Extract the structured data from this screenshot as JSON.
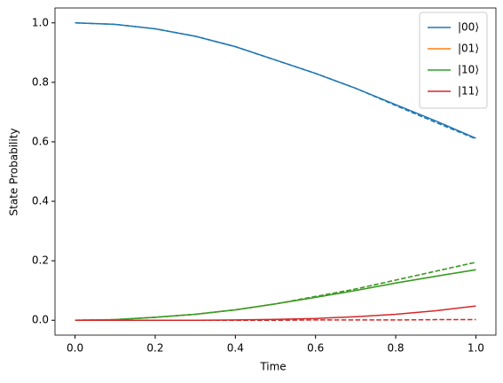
{
  "chart_data": {
    "type": "line",
    "x_label": "Time",
    "y_label": "State Probability",
    "x": [
      0,
      0.1,
      0.2,
      0.3,
      0.4,
      0.5,
      0.6,
      0.7,
      0.8,
      0.9,
      1.0
    ],
    "series": [
      {
        "name": "|00⟩",
        "color": "#1f77b4",
        "linestyle": "solid",
        "values": [
          1.0,
          0.995,
          0.98,
          0.955,
          0.92,
          0.875,
          0.83,
          0.78,
          0.725,
          0.67,
          0.612
        ]
      },
      {
        "name": "|01⟩",
        "color": "#ff7f0e",
        "linestyle": "solid",
        "values": [
          0,
          0.002,
          0.01,
          0.02,
          0.035,
          0.055,
          0.077,
          0.1,
          0.125,
          0.148,
          0.17
        ]
      },
      {
        "name": "|10⟩",
        "color": "#2ca02c",
        "linestyle": "solid",
        "values": [
          0,
          0.002,
          0.01,
          0.02,
          0.035,
          0.055,
          0.077,
          0.1,
          0.125,
          0.148,
          0.17
        ]
      },
      {
        "name": "|11⟩",
        "color": "#d62728",
        "linestyle": "solid",
        "values": [
          0,
          0,
          0,
          0,
          0.001,
          0.003,
          0.006,
          0.012,
          0.02,
          0.032,
          0.048
        ]
      },
      {
        "color": "#1f77b4",
        "linestyle": "dashed",
        "values": [
          1.0,
          0.995,
          0.98,
          0.955,
          0.92,
          0.875,
          0.83,
          0.78,
          0.722,
          0.665,
          0.61
        ]
      },
      {
        "color": "#ff7f0e",
        "linestyle": "dashed",
        "values": [
          0,
          0.002,
          0.01,
          0.02,
          0.035,
          0.055,
          0.08,
          0.105,
          0.135,
          0.165,
          0.195
        ]
      },
      {
        "color": "#2ca02c",
        "linestyle": "dashed",
        "values": [
          0,
          0.002,
          0.01,
          0.02,
          0.035,
          0.055,
          0.08,
          0.105,
          0.135,
          0.165,
          0.195
        ]
      },
      {
        "color": "#d62728",
        "linestyle": "dashed",
        "values": [
          0,
          0,
          0,
          0,
          0,
          0,
          0.001,
          0.001,
          0.001,
          0.002,
          0.002
        ]
      }
    ],
    "xlim": [
      -0.05,
      1.05
    ],
    "ylim": [
      -0.05,
      1.05
    ],
    "xticks": [
      {
        "value": 0,
        "label": "0.0"
      },
      0.2,
      0.4,
      0.6,
      0.8,
      {
        "value": 1,
        "label": "1.0"
      }
    ],
    "yticks": [
      {
        "value": 0,
        "label": "0.0"
      },
      0.2,
      0.4,
      0.6,
      0.8,
      {
        "value": 1,
        "label": "1.0"
      }
    ],
    "grid": false,
    "legend": "upper right"
  }
}
